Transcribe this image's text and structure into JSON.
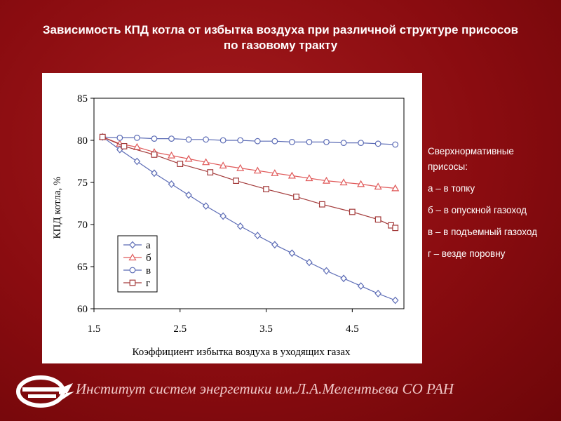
{
  "slide": {
    "title_line1": "Зависимость КПД котла от избытка воздуха при различной структуре присосов",
    "title_line2": "по газовому тракту"
  },
  "notes": {
    "heading": "Сверхнормативные присосы:",
    "items": [
      "а – в топку",
      "б – в опускной газоход",
      "в – в подъемный газоход",
      "г – везде поровну"
    ]
  },
  "footer": {
    "institute": "Институт систем энергетики им.Л.А.Мелентьева СО РАН",
    "logo_icon": "institute-logo-icon"
  },
  "chart_data": {
    "type": "line",
    "xlabel": "Коэффициент избытка воздуха в уходящих газах",
    "ylabel": "КПД котла, %",
    "xlim": [
      1.5,
      5.1
    ],
    "ylim": [
      60,
      85
    ],
    "xticks": [
      1.5,
      2.5,
      3.5,
      4.5
    ],
    "yticks": [
      60,
      65,
      70,
      75,
      80,
      85
    ],
    "legend_placement": "bottom-left",
    "series": [
      {
        "name": "а",
        "color": "#5b6bb5",
        "marker": "diamond",
        "x": [
          1.6,
          1.8,
          2.0,
          2.2,
          2.4,
          2.6,
          2.8,
          3.0,
          3.2,
          3.4,
          3.6,
          3.8,
          4.0,
          4.2,
          4.4,
          4.6,
          4.8,
          5.0
        ],
        "y": [
          80.4,
          78.9,
          77.5,
          76.1,
          74.8,
          73.5,
          72.2,
          71.0,
          69.8,
          68.7,
          67.6,
          66.6,
          65.5,
          64.5,
          63.6,
          62.7,
          61.8,
          61.0
        ]
      },
      {
        "name": "б",
        "color": "#e05a5a",
        "marker": "triangle",
        "x": [
          1.6,
          1.8,
          2.0,
          2.2,
          2.4,
          2.6,
          2.8,
          3.0,
          3.2,
          3.4,
          3.6,
          3.8,
          4.0,
          4.2,
          4.4,
          4.6,
          4.8,
          5.0
        ],
        "y": [
          80.4,
          79.6,
          79.2,
          78.6,
          78.2,
          77.8,
          77.4,
          77.0,
          76.7,
          76.4,
          76.1,
          75.8,
          75.5,
          75.2,
          75.0,
          74.8,
          74.5,
          74.3
        ]
      },
      {
        "name": "в",
        "color": "#5b6bb5",
        "marker": "circle",
        "x": [
          1.6,
          1.8,
          2.0,
          2.2,
          2.4,
          2.6,
          2.8,
          3.0,
          3.2,
          3.4,
          3.6,
          3.8,
          4.0,
          4.2,
          4.4,
          4.6,
          4.8,
          5.0
        ],
        "y": [
          80.4,
          80.3,
          80.3,
          80.2,
          80.2,
          80.1,
          80.1,
          80.0,
          80.0,
          79.9,
          79.9,
          79.8,
          79.8,
          79.8,
          79.7,
          79.7,
          79.6,
          79.5
        ]
      },
      {
        "name": "г",
        "color": "#a33a3a",
        "marker": "square",
        "x": [
          1.6,
          1.85,
          2.2,
          2.5,
          2.85,
          3.15,
          3.5,
          3.85,
          4.15,
          4.5,
          4.8,
          4.95,
          5.0
        ],
        "y": [
          80.4,
          79.3,
          78.3,
          77.2,
          76.2,
          75.2,
          74.2,
          73.3,
          72.4,
          71.5,
          70.6,
          69.9,
          69.6
        ]
      }
    ]
  }
}
